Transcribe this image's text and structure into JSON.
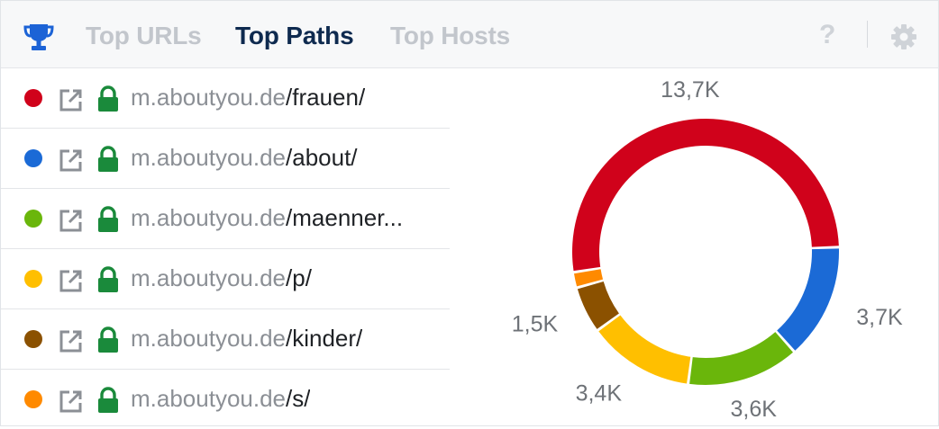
{
  "header": {
    "tabs": [
      {
        "label": "Top URLs",
        "active": false
      },
      {
        "label": "Top Paths",
        "active": true
      },
      {
        "label": "Top Hosts",
        "active": false
      }
    ],
    "help_label": "?",
    "trophy_icon": "trophy-icon",
    "settings_icon": "gear-icon",
    "accent_color": "#1c63d6",
    "active_tab_color": "#0e2a4f"
  },
  "rows": [
    {
      "host": "m.aboutyou.de",
      "path": "/frauen/",
      "color": "#d0021b"
    },
    {
      "host": "m.aboutyou.de",
      "path": "/about/",
      "color": "#1b6ad6"
    },
    {
      "host": "m.aboutyou.de",
      "path": "/maenner...",
      "color": "#6ab60b"
    },
    {
      "host": "m.aboutyou.de",
      "path": "/p/",
      "color": "#ffbf00"
    },
    {
      "host": "m.aboutyou.de",
      "path": "/kinder/",
      "color": "#8b5100"
    },
    {
      "host": "m.aboutyou.de",
      "path": "/s/",
      "color": "#ff8a00"
    }
  ],
  "row_icons": {
    "external": "external-link-icon",
    "lock": "lock-icon",
    "lock_color": "#1a8a3b"
  },
  "chart_data": {
    "type": "pie",
    "variant": "donut",
    "categories": [
      "m.aboutyou.de/frauen/",
      "m.aboutyou.de/about/",
      "m.aboutyou.de/maenner...",
      "m.aboutyou.de/p/",
      "m.aboutyou.de/kinder/",
      "m.aboutyou.de/s/"
    ],
    "values": [
      13700,
      3700,
      3600,
      3400,
      1500,
      500
    ],
    "data_labels": [
      "13,7K",
      "3,7K",
      "3,6K",
      "3,4K",
      "1,5K",
      ""
    ],
    "colors": [
      "#d0021b",
      "#1b6ad6",
      "#6ab60b",
      "#ffbf00",
      "#8b5100",
      "#ff8a00"
    ]
  }
}
